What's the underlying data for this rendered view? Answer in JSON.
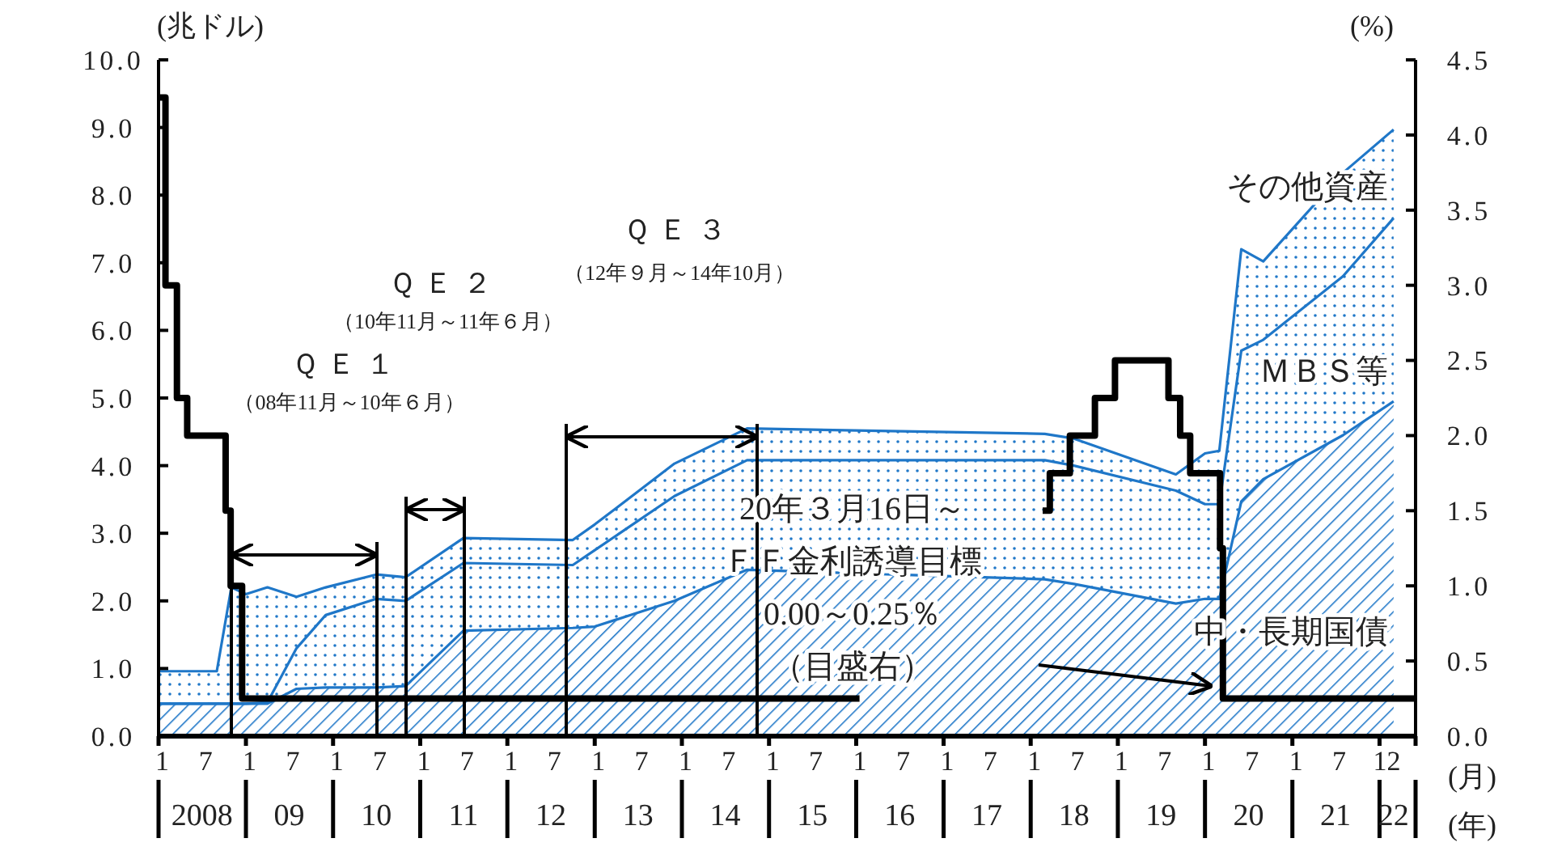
{
  "chart_data": {
    "type": "area",
    "stacked": true,
    "x": [
      "2008-01",
      "2008-09",
      "2008-11",
      "2009-01",
      "2009-04",
      "2009-08",
      "2009-12",
      "2010-07",
      "2010-11",
      "2011-07",
      "2012-10",
      "2013-01",
      "2013-12",
      "2014-10",
      "2018-03",
      "2018-07",
      "2019-09",
      "2020-01",
      "2020-03",
      "2020-06",
      "2020-09",
      "2021-08",
      "2022-03"
    ],
    "series": [
      {
        "name": "中・長期国債",
        "color": "#1f77c8",
        "values": [
          0.48,
          0.48,
          0.48,
          0.48,
          0.48,
          0.7,
          0.72,
          0.72,
          0.74,
          1.56,
          1.6,
          1.62,
          2.0,
          2.46,
          2.32,
          2.25,
          1.96,
          2.03,
          2.03,
          3.47,
          3.8,
          4.45,
          4.95
        ]
      },
      {
        "name": "ＭＢＳ等",
        "color": "#1f77c8",
        "values": [
          0,
          0,
          0,
          0,
          0.02,
          0.6,
          1.07,
          1.31,
          1.26,
          1.0,
          0.93,
          1.13,
          1.55,
          1.62,
          1.76,
          1.75,
          1.67,
          1.4,
          1.4,
          2.23,
          2.06,
          2.35,
          2.71
        ]
      },
      {
        "name": "その他資産",
        "color": "#1f77c8",
        "values": [
          0.48,
          0.48,
          1.72,
          1.62,
          1.7,
          0.76,
          0.41,
          0.36,
          0.35,
          0.37,
          0.37,
          0.38,
          0.48,
          0.47,
          0.39,
          0.4,
          0.24,
          0.75,
          0.79,
          1.5,
          1.16,
          1.53,
          1.31
        ]
      },
      {
        "type": "step",
        "axis": "y2",
        "color": "#000000",
        "x": [
          "2008-01-01",
          "2008-01-30",
          "2008-03-18",
          "2008-04-30",
          "2008-10-08",
          "2008-10-29",
          "2008-12-16",
          "2016-01-15",
          "2018-02-20",
          "2018-03-22",
          "2018-06-14",
          "2018-09-27",
          "2018-12-20",
          "2019-08-01",
          "2019-09-19",
          "2019-10-31",
          "2020-03-04",
          "2020-03-16",
          "2022-06-01"
        ],
        "values": [
          4.25,
          3.0,
          2.25,
          2.0,
          1.5,
          1.0,
          0.25,
          null,
          1.5,
          1.75,
          2.0,
          2.25,
          2.5,
          2.25,
          2.0,
          1.75,
          1.25,
          0.25,
          0.25
        ]
      }
    ],
    "ylabel": "(兆ドル)",
    "y2label": "(%)",
    "xlabel": "(月)",
    "x2label": "(年)",
    "xlim": [
      "2008-01-01",
      "2022-06-01"
    ],
    "xticks": [
      {
        "value": "2008-01-16",
        "label": "1"
      },
      {
        "value": "2008-07-16",
        "label": "7"
      },
      {
        "value": "2009-01-16",
        "label": "1"
      },
      {
        "value": "2009-07-16",
        "label": "7"
      },
      {
        "value": "2010-01-16",
        "label": "1"
      },
      {
        "value": "2010-07-16",
        "label": "7"
      },
      {
        "value": "2011-01-16",
        "label": "1"
      },
      {
        "value": "2011-07-16",
        "label": "7"
      },
      {
        "value": "2012-01-16",
        "label": "1"
      },
      {
        "value": "2012-07-16",
        "label": "7"
      },
      {
        "value": "2013-01-16",
        "label": "1"
      },
      {
        "value": "2013-07-16",
        "label": "7"
      },
      {
        "value": "2014-01-16",
        "label": "1"
      },
      {
        "value": "2014-07-16",
        "label": "7"
      },
      {
        "value": "2015-01-16",
        "label": "1"
      },
      {
        "value": "2015-07-16",
        "label": "7"
      },
      {
        "value": "2016-01-16",
        "label": "1"
      },
      {
        "value": "2016-07-16",
        "label": "7"
      },
      {
        "value": "2017-01-16",
        "label": "1"
      },
      {
        "value": "2017-07-16",
        "label": "7"
      },
      {
        "value": "2018-01-16",
        "label": "1"
      },
      {
        "value": "2018-07-16",
        "label": "7"
      },
      {
        "value": "2019-01-16",
        "label": "1"
      },
      {
        "value": "2019-07-16",
        "label": "7"
      },
      {
        "value": "2020-01-16",
        "label": "1"
      },
      {
        "value": "2020-07-16",
        "label": "7"
      },
      {
        "value": "2021-01-16",
        "label": "1"
      },
      {
        "value": "2021-07-16",
        "label": "7"
      },
      {
        "value": "2022-02-01",
        "label": "12"
      }
    ],
    "x2lim": [
      "2008-01-01",
      "2022-06-01"
    ],
    "x2ticks": [
      {
        "value": "2008-07-01",
        "label": "2008"
      },
      {
        "value": "2009-07-01",
        "label": "09"
      },
      {
        "value": "2010-07-01",
        "label": "10"
      },
      {
        "value": "2011-07-01",
        "label": "11"
      },
      {
        "value": "2012-07-01",
        "label": "12"
      },
      {
        "value": "2013-07-01",
        "label": "13"
      },
      {
        "value": "2014-07-01",
        "label": "14"
      },
      {
        "value": "2015-07-01",
        "label": "15"
      },
      {
        "value": "2016-07-01",
        "label": "16"
      },
      {
        "value": "2017-07-01",
        "label": "17"
      },
      {
        "value": "2018-07-01",
        "label": "18"
      },
      {
        "value": "2019-07-01",
        "label": "19"
      },
      {
        "value": "2020-07-01",
        "label": "20"
      },
      {
        "value": "2021-07-01",
        "label": "21"
      },
      {
        "value": "2022-03-01",
        "label": "22"
      }
    ],
    "ylim": [
      0,
      10
    ],
    "yticks": [
      {
        "value": 0,
        "label": "0.0"
      },
      {
        "value": 1,
        "label": "1.0"
      },
      {
        "value": 2,
        "label": "2.0"
      },
      {
        "value": 3,
        "label": "3.0"
      },
      {
        "value": 4,
        "label": "4.0"
      },
      {
        "value": 5,
        "label": "5.0"
      },
      {
        "value": 6,
        "label": "6.0"
      },
      {
        "value": 7,
        "label": "7.0"
      },
      {
        "value": 8,
        "label": "8.0"
      },
      {
        "value": 9,
        "label": "9.0"
      },
      {
        "value": 10,
        "label": "10.0"
      }
    ],
    "y2lim": [
      0,
      4.5
    ],
    "y2ticks": [
      {
        "value": 0,
        "label": "0.0"
      },
      {
        "value": 0.5,
        "label": "0.5"
      },
      {
        "value": 1,
        "label": "1.0"
      },
      {
        "value": 1.5,
        "label": "1.5"
      },
      {
        "value": 2,
        "label": "2.0"
      },
      {
        "value": 2.5,
        "label": "2.5"
      },
      {
        "value": 3,
        "label": "3.0"
      },
      {
        "value": 3.5,
        "label": "3.5"
      },
      {
        "value": 4,
        "label": "4.0"
      },
      {
        "value": 4.5,
        "label": "4.5"
      }
    ],
    "annotations": [
      "ＱＥ１",
      "（08年11月～10年６月）",
      "ＱＥ２",
      "（10年11月～11年６月）",
      "ＱＥ３",
      "（12年９月～14年10月）",
      "20年３月16日～",
      "ＦＦ金利誘導目標",
      "0.00～0.25％",
      "（目盛右）"
    ],
    "grid": false
  }
}
